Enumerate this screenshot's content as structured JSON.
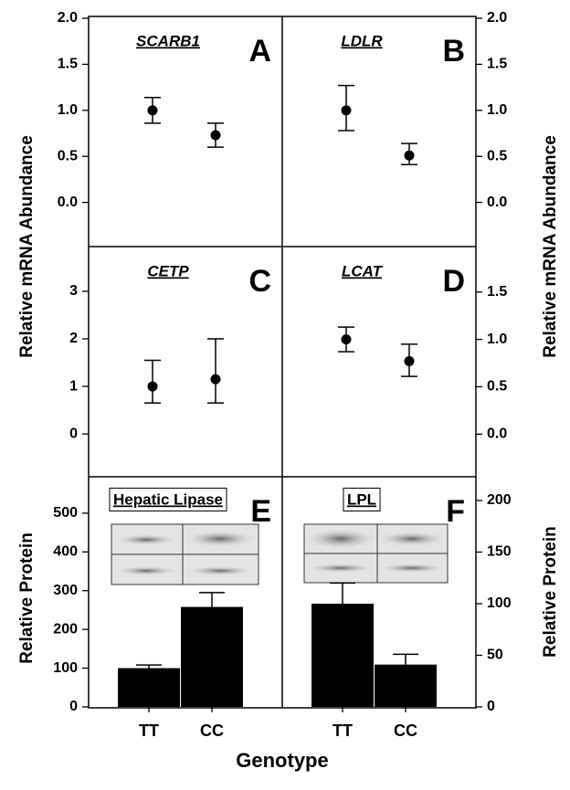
{
  "x_label": "Genotype",
  "chart_data": [
    {
      "type": "scatter",
      "panel": "A",
      "title": "SCARB1",
      "ylabel": "Relative mRNA Abundance",
      "axis_side": "left",
      "color": "#000000",
      "ylim": [
        -0.48,
        2.02
      ],
      "yticks": [
        {
          "value": 0,
          "label": "0.0"
        },
        {
          "value": 0.5,
          "label": "0.5"
        },
        {
          "value": 1,
          "label": "1.0"
        },
        {
          "value": 1.5,
          "label": "1.5"
        },
        {
          "value": 2,
          "label": "2.0"
        }
      ],
      "values": [
        1.0,
        0.73
      ],
      "error_plus": [
        0.14,
        0.13
      ],
      "error_minus": [
        0.14,
        0.13
      ]
    },
    {
      "type": "scatter",
      "panel": "B",
      "title": "LDLR",
      "ylabel": "Relative mRNA Abundance",
      "axis_side": "right",
      "color": "#000000",
      "ylim": [
        -0.48,
        2.02
      ],
      "yticks": [
        {
          "value": 0,
          "label": "0.0"
        },
        {
          "value": 0.5,
          "label": "0.5"
        },
        {
          "value": 1,
          "label": "1.0"
        },
        {
          "value": 1.5,
          "label": "1.5"
        },
        {
          "value": 2,
          "label": "2.0"
        }
      ],
      "values": [
        1.0,
        0.51
      ],
      "error_plus": [
        0.27,
        0.13
      ],
      "error_minus": [
        0.22,
        0.1
      ]
    },
    {
      "type": "scatter",
      "panel": "C",
      "title": "CETP",
      "axis_side": "left",
      "color": "#000000",
      "ylim": [
        -0.9,
        3.94
      ],
      "yticks": [
        0,
        1,
        2,
        3
      ],
      "values": [
        1.0,
        1.15
      ],
      "error_plus": [
        0.55,
        0.85
      ],
      "error_minus": [
        0.35,
        0.5
      ]
    },
    {
      "type": "scatter",
      "panel": "D",
      "title": "LCAT",
      "axis_side": "right",
      "color": "#000000",
      "ylim": [
        -0.45,
        1.98
      ],
      "yticks": [
        {
          "value": 0,
          "label": "0.0"
        },
        {
          "value": 0.5,
          "label": "0.5"
        },
        {
          "value": 1,
          "label": "1.0"
        },
        {
          "value": 1.5,
          "label": "1.5"
        }
      ],
      "values": [
        1.0,
        0.77
      ],
      "error_plus": [
        0.13,
        0.18
      ],
      "error_minus": [
        0.13,
        0.16
      ]
    },
    {
      "type": "bar",
      "panel": "E",
      "title": "Hepatic Lipase",
      "ylabel": "Relative Protein",
      "axis_side": "left",
      "color": "#000000",
      "ylim": [
        0,
        594
      ],
      "yticks": [
        0,
        100,
        200,
        300,
        400,
        500
      ],
      "categories": [
        "TT",
        "CC"
      ],
      "values": [
        100,
        258
      ],
      "errors": [
        8,
        37
      ]
    },
    {
      "type": "bar",
      "panel": "F",
      "title": "LPL",
      "ylabel": "Relative Protein",
      "axis_side": "right",
      "color": "#000000",
      "ylim": [
        0,
        223
      ],
      "yticks": [
        0,
        50,
        100,
        150,
        200
      ],
      "categories": [
        "TT",
        "CC"
      ],
      "values": [
        100,
        41
      ],
      "errors": [
        20,
        10
      ]
    }
  ]
}
